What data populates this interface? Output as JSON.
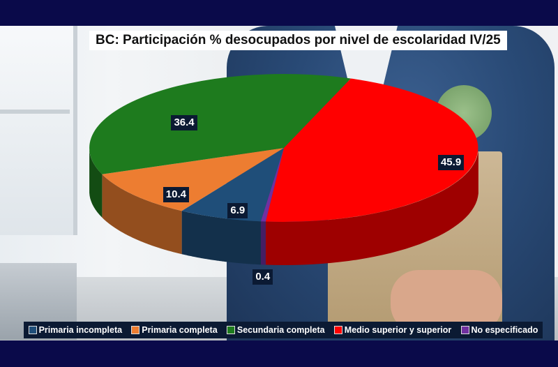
{
  "chart_data": {
    "type": "pie",
    "title": "BC: Participación % desocupados por nivel de escolaridad IV/25",
    "categories": [
      "Primaria incompleta",
      "Primaria completa",
      "Secundaria completa",
      "Medio superior y superior",
      "No especificado"
    ],
    "values": [
      6.9,
      10.4,
      36.4,
      45.9,
      0.4
    ],
    "value_labels": [
      "6.9",
      "10.4",
      "36.4",
      "45.9",
      "0.4"
    ],
    "colors": [
      "#1f4e79",
      "#ed7d31",
      "#1e7b1e",
      "#ff0000",
      "#7030a0"
    ],
    "legend_position": "bottom",
    "style": "3d-pie"
  }
}
